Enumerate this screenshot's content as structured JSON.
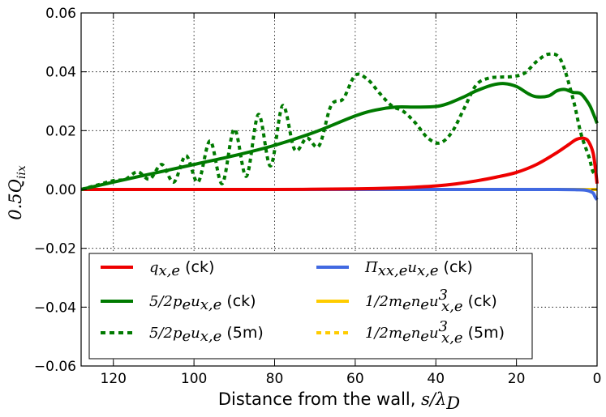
{
  "chart_data": {
    "type": "line",
    "title": "",
    "xlabel": "Distance from the wall, ",
    "xlabel_math": "s/λ",
    "xlabel_math_sub": "D",
    "ylabel": "0.5Q",
    "ylabel_sub": "iix",
    "xlim": [
      128,
      0
    ],
    "ylim": [
      -0.06,
      0.06
    ],
    "xticks": [
      120,
      100,
      80,
      60,
      40,
      20,
      0
    ],
    "yticks": [
      0.06,
      0.04,
      0.02,
      0.0,
      -0.02,
      -0.04,
      -0.06
    ],
    "xtick_labels": [
      "120",
      "100",
      "80",
      "60",
      "40",
      "20",
      "0"
    ],
    "ytick_labels": [
      "0.06",
      "0.04",
      "0.02",
      "0.00",
      "−0.02",
      "−0.04",
      "−0.06"
    ],
    "grid": true,
    "legend_position": "lower-center",
    "series": [
      {
        "name": "q_x,e (ck)",
        "color": "#ee0000",
        "style": "solid",
        "x": [
          128,
          100,
          80,
          60,
          50,
          45,
          40,
          35,
          30,
          25,
          20,
          15,
          10,
          7,
          5,
          3,
          2,
          1,
          0.5,
          0
        ],
        "y": [
          0,
          0,
          0,
          0.0002,
          0.0005,
          0.0008,
          0.0012,
          0.0019,
          0.0029,
          0.0042,
          0.0058,
          0.0085,
          0.0125,
          0.0153,
          0.0171,
          0.0173,
          0.016,
          0.0125,
          0.008,
          0.002
        ]
      },
      {
        "name": "Π_xx,e u_x,e (ck)",
        "color": "#4169e1",
        "style": "solid",
        "x": [
          128,
          100,
          60,
          20,
          10,
          5,
          3,
          2,
          1,
          0.5,
          0
        ],
        "y": [
          0,
          0,
          0,
          0,
          0,
          -0.0001,
          -0.0002,
          -0.0005,
          -0.0012,
          -0.0025,
          -0.0035
        ]
      },
      {
        "name": "5/2p_e u_x,e (ck)",
        "color": "#007a00",
        "style": "solid",
        "x": [
          128,
          120,
          110,
          100,
          90,
          80,
          70,
          60,
          55,
          50,
          45,
          40,
          37,
          33,
          30,
          26,
          23,
          20,
          17,
          15,
          12,
          10,
          8,
          6,
          4,
          2,
          1,
          0
        ],
        "y": [
          0,
          0.0025,
          0.0055,
          0.0085,
          0.0115,
          0.015,
          0.0195,
          0.025,
          0.027,
          0.028,
          0.028,
          0.0282,
          0.0292,
          0.0315,
          0.0335,
          0.0355,
          0.036,
          0.035,
          0.0325,
          0.0315,
          0.0318,
          0.0335,
          0.034,
          0.033,
          0.0325,
          0.029,
          0.026,
          0.0225
        ]
      },
      {
        "name": "5/2p_e u_x,e (5m)",
        "color": "#007a00",
        "style": "dashed",
        "x": [
          128,
          124,
          120,
          117,
          114,
          111,
          108,
          105,
          102,
          99,
          96,
          93,
          90,
          87,
          84,
          81,
          78,
          75,
          72,
          69,
          66,
          63,
          60,
          57,
          54,
          51,
          48,
          45,
          42,
          39,
          36,
          33,
          30,
          27,
          24,
          21,
          18,
          15,
          12,
          9,
          6,
          4,
          2,
          1,
          0
        ],
        "y": [
          0,
          0.0015,
          0.003,
          0.0035,
          0.006,
          0.0035,
          0.0085,
          0.0025,
          0.0115,
          0.0025,
          0.0165,
          0.002,
          0.0205,
          0.0045,
          0.0255,
          0.008,
          0.0285,
          0.0135,
          0.0175,
          0.0148,
          0.0285,
          0.0308,
          0.0388,
          0.0375,
          0.0328,
          0.0285,
          0.0265,
          0.0225,
          0.0175,
          0.0158,
          0.0195,
          0.0275,
          0.0355,
          0.0378,
          0.0382,
          0.0384,
          0.0395,
          0.0435,
          0.046,
          0.044,
          0.031,
          0.019,
          0.011,
          0.006,
          0.0055
        ]
      },
      {
        "name": "1/2m_e n_e u³_x,e (ck)",
        "color": "#ffcc00",
        "style": "solid",
        "x": [
          128,
          0
        ],
        "y": [
          0,
          0
        ]
      },
      {
        "name": "1/2m_e n_e u³_x,e (5m)",
        "color": "#ffcc00",
        "style": "dashed",
        "x": [
          128,
          0
        ],
        "y": [
          0,
          0
        ]
      }
    ]
  },
  "legend": {
    "items": [
      {
        "math": "q",
        "sub": "x,e",
        "pre": "",
        "mid": "",
        "suffix": " (ck)"
      },
      {
        "math": "Π",
        "sub": "xx,e",
        "pre": "",
        "mid": "u",
        "mid_sub": "x,e",
        "suffix": " (ck)"
      },
      {
        "math": "5/2p",
        "sub": "e",
        "pre": "",
        "mid": "u",
        "mid_sub": "x,e",
        "suffix": " (ck)"
      },
      {
        "math": "1/2m",
        "sub": "e",
        "pre": "",
        "mid": "n",
        "mid_sub": "e",
        "tail": "u",
        "tail_sup": "3",
        "tail_sub": "x,e",
        "suffix": " (ck)"
      },
      {
        "math": "5/2p",
        "sub": "e",
        "pre": "",
        "mid": "u",
        "mid_sub": "x,e",
        "suffix": " (5m)"
      },
      {
        "math": "1/2m",
        "sub": "e",
        "pre": "",
        "mid": "n",
        "mid_sub": "e",
        "tail": "u",
        "tail_sup": "3",
        "tail_sub": "x,e",
        "suffix": " (5m)"
      }
    ]
  }
}
